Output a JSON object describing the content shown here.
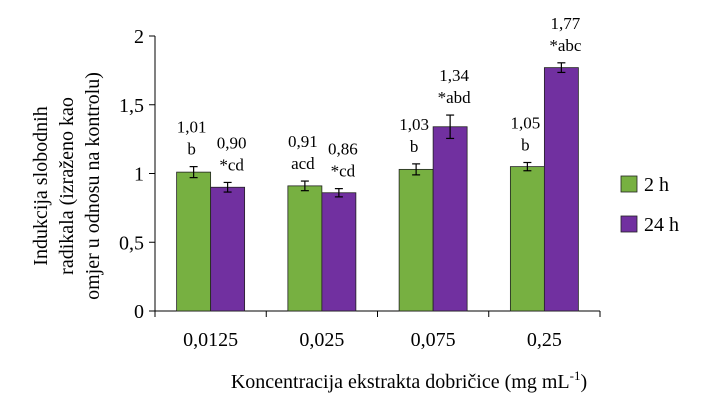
{
  "chart_data": {
    "type": "bar",
    "title": "",
    "xlabel": "Koncentracija ekstrakta dobričice (mg mL",
    "xlabel_superscript": "-1",
    "xlabel_suffix": ")",
    "ylabel_lines": [
      "Indukcija slobodnih",
      "radikala (izraženo kao",
      "omjer u odnosu na kontrolu)"
    ],
    "categories": [
      "0,0125",
      "0,025",
      "0,075",
      "0,25"
    ],
    "ylim": [
      0,
      2
    ],
    "yticks": [
      0,
      0.5,
      1,
      1.5,
      2
    ],
    "ytick_labels": [
      "0",
      "0,5",
      "1",
      "1,5",
      "2"
    ],
    "grid": false,
    "legend_position": "right",
    "series": [
      {
        "name": "2 h",
        "color": "#77b041",
        "values": [
          1.01,
          0.91,
          1.03,
          1.05
        ],
        "errors": [
          0.04,
          0.035,
          0.04,
          0.03
        ],
        "value_labels": [
          "1,01",
          "0,91",
          "1,03",
          "1,05"
        ],
        "sig_labels": [
          "b",
          "acd",
          "b",
          "b"
        ]
      },
      {
        "name": "24 h",
        "color": "#7130a0",
        "values": [
          0.9,
          0.86,
          1.34,
          1.77
        ],
        "errors": [
          0.035,
          0.03,
          0.085,
          0.035
        ],
        "value_labels": [
          "0,90",
          "0,86",
          "1,34",
          "1,77"
        ],
        "sig_labels": [
          "*cd",
          "*cd",
          "*abd",
          "*abc"
        ]
      }
    ]
  }
}
